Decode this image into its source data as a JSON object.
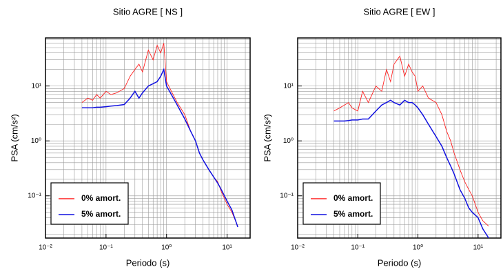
{
  "chart_data": [
    {
      "type": "line",
      "title": "Sitio AGRE [ NS ]",
      "x_label": "Periodo (s)",
      "y_label": "PSA (cm/s²)",
      "log_x": true,
      "log_y": true,
      "grid": true,
      "legend": "lower left",
      "xlim": [
        0.01,
        24
      ],
      "ylim": [
        0.017,
        75
      ],
      "xticks": [
        {
          "value": 0.01,
          "label": "10⁻²"
        },
        {
          "value": 0.1,
          "label": "10⁻¹"
        },
        {
          "value": 1,
          "label": "10⁰"
        },
        {
          "value": 10,
          "label": "10¹"
        }
      ],
      "yticks": [
        {
          "value": 0.1,
          "label": "10⁻¹"
        },
        {
          "value": 1,
          "label": "10⁰"
        },
        {
          "value": 10,
          "label": "10¹"
        }
      ],
      "x": [
        0.04,
        0.05,
        0.06,
        0.07,
        0.08,
        0.1,
        0.12,
        0.15,
        0.2,
        0.25,
        0.3,
        0.35,
        0.4,
        0.5,
        0.6,
        0.7,
        0.8,
        0.9,
        1,
        1.2,
        1.5,
        2,
        2.5,
        3,
        3.5,
        4,
        5,
        6,
        7,
        8,
        10,
        12,
        15
      ],
      "series": [
        {
          "name": "0% amort.",
          "color": "#ff2020",
          "values": [
            5,
            6,
            5.5,
            7,
            6,
            8,
            7,
            7.5,
            9,
            15,
            20,
            25,
            18,
            45,
            30,
            55,
            40,
            60,
            12,
            8,
            5,
            3,
            1.5,
            1,
            0.6,
            0.45,
            0.3,
            0.22,
            0.18,
            0.12,
            0.07,
            0.05,
            0.028
          ]
        },
        {
          "name": "5% amort.",
          "color": "#1010e0",
          "values": [
            4,
            4,
            4,
            4.1,
            4.1,
            4.2,
            4.3,
            4.4,
            4.6,
            6,
            8,
            6,
            7.5,
            10,
            11,
            12,
            15,
            20,
            10,
            7,
            4.5,
            2.5,
            1.5,
            1,
            0.6,
            0.45,
            0.3,
            0.22,
            0.17,
            0.13,
            0.08,
            0.055,
            0.027
          ]
        }
      ]
    },
    {
      "type": "line",
      "title": "Sitio AGRE [ EW ]",
      "x_label": "Periodo (s)",
      "y_label": "PSA (cm/s²)",
      "log_x": true,
      "log_y": true,
      "grid": true,
      "legend": "lower left",
      "xlim": [
        0.01,
        24
      ],
      "ylim": [
        0.017,
        75
      ],
      "xticks": [
        {
          "value": 0.01,
          "label": "10⁻²"
        },
        {
          "value": 0.1,
          "label": "10⁻¹"
        },
        {
          "value": 1,
          "label": "10⁰"
        },
        {
          "value": 10,
          "label": "10¹"
        }
      ],
      "yticks": [
        {
          "value": 0.1,
          "label": "10⁻¹"
        },
        {
          "value": 1,
          "label": "10⁰"
        },
        {
          "value": 10,
          "label": "10¹"
        }
      ],
      "x": [
        0.04,
        0.05,
        0.06,
        0.07,
        0.08,
        0.1,
        0.12,
        0.15,
        0.2,
        0.25,
        0.3,
        0.35,
        0.4,
        0.5,
        0.6,
        0.7,
        0.8,
        0.9,
        1,
        1.2,
        1.5,
        2,
        2.5,
        3,
        3.5,
        4,
        5,
        6,
        7,
        8,
        10,
        12,
        15
      ],
      "series": [
        {
          "name": "0% amort.",
          "color": "#ff2020",
          "values": [
            3.5,
            4,
            4.5,
            5,
            4,
            3.5,
            8,
            5,
            10,
            8,
            20,
            12,
            25,
            35,
            15,
            25,
            18,
            15,
            8,
            10,
            6,
            5,
            3,
            1.5,
            1,
            0.6,
            0.3,
            0.18,
            0.13,
            0.1,
            0.05,
            0.035,
            0.028
          ]
        },
        {
          "name": "5% amort.",
          "color": "#1010e0",
          "values": [
            2.3,
            2.3,
            2.3,
            2.35,
            2.4,
            2.4,
            2.5,
            2.5,
            3.5,
            4.5,
            5,
            5.5,
            5,
            4.5,
            5.5,
            5,
            5,
            4.5,
            4,
            3,
            2,
            1.2,
            0.8,
            0.5,
            0.35,
            0.25,
            0.13,
            0.09,
            0.06,
            0.05,
            0.04,
            0.025,
            0.017
          ]
        }
      ]
    }
  ]
}
